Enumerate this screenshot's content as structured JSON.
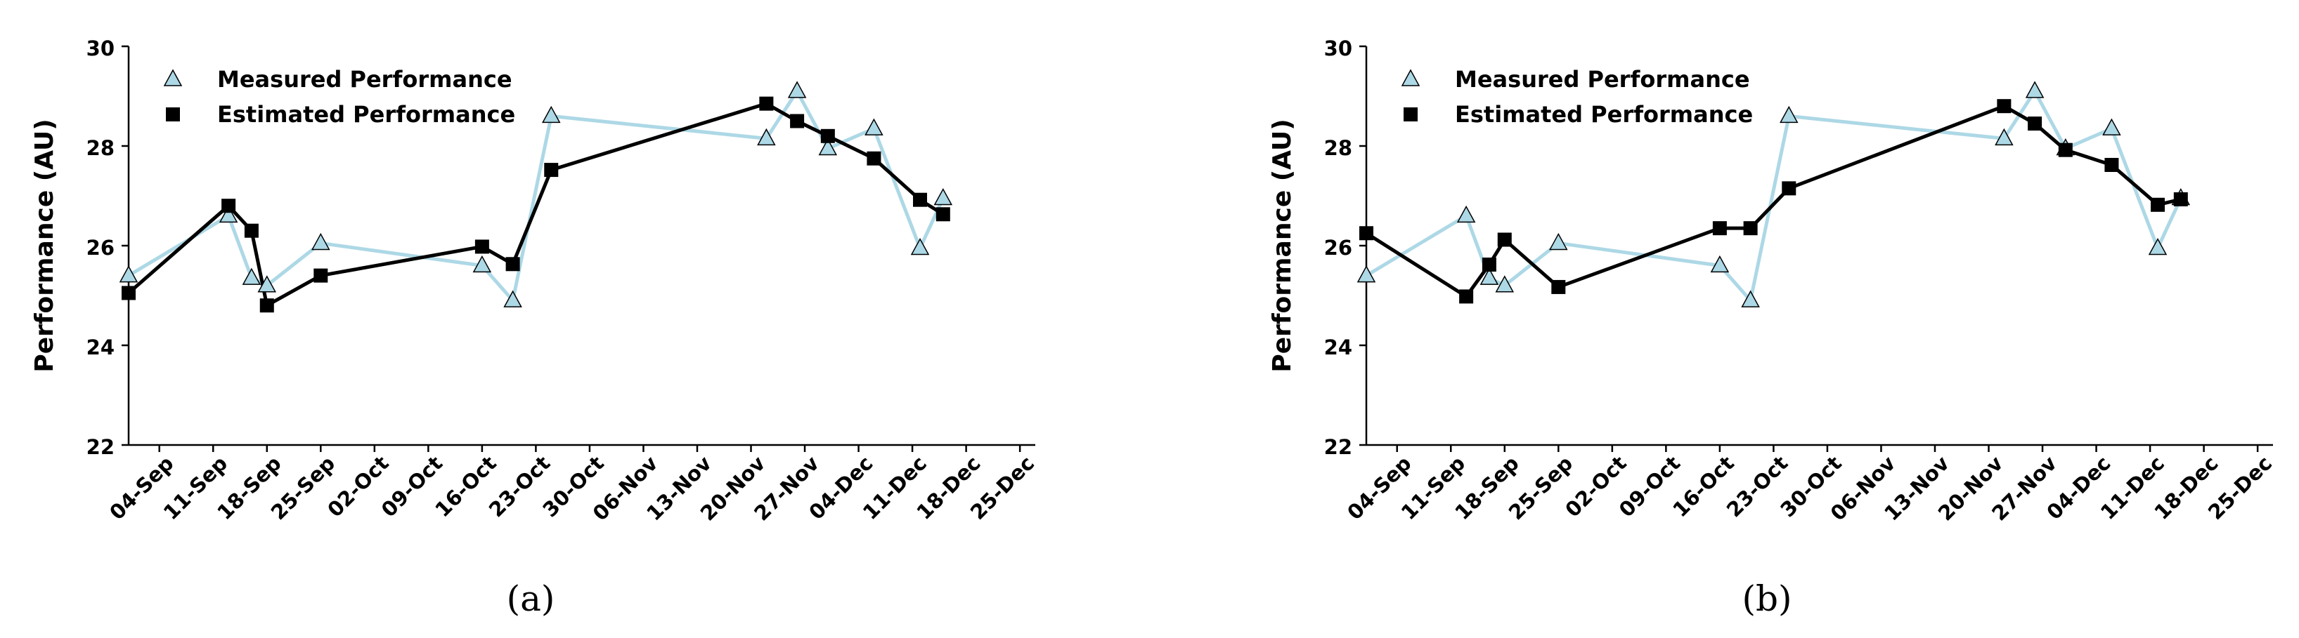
{
  "chart_data": [
    {
      "type": "line",
      "caption": "(a)",
      "title": "",
      "xlabel": "",
      "ylabel": "Performance (AU)",
      "ylim": [
        22,
        30
      ],
      "yticks": [
        22,
        24,
        26,
        28,
        30
      ],
      "xticks": [
        "04-Sep",
        "11-Sep",
        "18-Sep",
        "25-Sep",
        "02-Oct",
        "09-Oct",
        "16-Oct",
        "23-Oct",
        "30-Oct",
        "06-Nov",
        "13-Nov",
        "20-Nov",
        "27-Nov",
        "04-Dec",
        "11-Dec",
        "18-Dec",
        "25-Dec"
      ],
      "xrange_days": [
        "2023-08-31",
        "2023-12-27"
      ],
      "legend": {
        "position": "top-left"
      },
      "grid": false,
      "series": [
        {
          "name": "Measured Performance",
          "marker": "triangle",
          "color": "#add8e6",
          "points": [
            {
              "x": "31-Aug",
              "y": 25.4
            },
            {
              "x": "13-Sep",
              "y": 26.6
            },
            {
              "x": "16-Sep",
              "y": 25.35
            },
            {
              "x": "18-Sep",
              "y": 25.2
            },
            {
              "x": "25-Sep",
              "y": 26.05
            },
            {
              "x": "16-Oct",
              "y": 25.6
            },
            {
              "x": "20-Oct",
              "y": 24.9
            },
            {
              "x": "25-Oct",
              "y": 28.6
            },
            {
              "x": "22-Nov",
              "y": 28.15
            },
            {
              "x": "26-Nov",
              "y": 29.1
            },
            {
              "x": "30-Nov",
              "y": 27.95
            },
            {
              "x": "06-Dec",
              "y": 28.35
            },
            {
              "x": "12-Dec",
              "y": 25.95
            },
            {
              "x": "15-Dec",
              "y": 26.95
            }
          ]
        },
        {
          "name": "Estimated Performance",
          "marker": "square",
          "color": "#000000",
          "points": [
            {
              "x": "31-Aug",
              "y": 25.05
            },
            {
              "x": "13-Sep",
              "y": 26.8
            },
            {
              "x": "16-Sep",
              "y": 26.3
            },
            {
              "x": "18-Sep",
              "y": 24.8
            },
            {
              "x": "25-Sep",
              "y": 25.4
            },
            {
              "x": "16-Oct",
              "y": 25.98
            },
            {
              "x": "20-Oct",
              "y": 25.63
            },
            {
              "x": "25-Oct",
              "y": 27.52
            },
            {
              "x": "22-Nov",
              "y": 28.85
            },
            {
              "x": "26-Nov",
              "y": 28.5
            },
            {
              "x": "30-Nov",
              "y": 28.2
            },
            {
              "x": "06-Dec",
              "y": 27.75
            },
            {
              "x": "12-Dec",
              "y": 26.92
            },
            {
              "x": "15-Dec",
              "y": 26.63
            }
          ]
        }
      ]
    },
    {
      "type": "line",
      "caption": "(b)",
      "title": "",
      "xlabel": "",
      "ylabel": "Performance (AU)",
      "ylim": [
        22,
        30
      ],
      "yticks": [
        22,
        24,
        26,
        28,
        30
      ],
      "xticks": [
        "04-Sep",
        "11-Sep",
        "18-Sep",
        "25-Sep",
        "02-Oct",
        "09-Oct",
        "16-Oct",
        "23-Oct",
        "30-Oct",
        "06-Nov",
        "13-Nov",
        "20-Nov",
        "27-Nov",
        "04-Dec",
        "11-Dec",
        "18-Dec",
        "25-Dec"
      ],
      "xrange_days": [
        "2023-08-31",
        "2023-12-27"
      ],
      "legend": {
        "position": "top-left"
      },
      "grid": false,
      "series": [
        {
          "name": "Measured Performance",
          "marker": "triangle",
          "color": "#add8e6",
          "points": [
            {
              "x": "31-Aug",
              "y": 25.4
            },
            {
              "x": "13-Sep",
              "y": 26.6
            },
            {
              "x": "16-Sep",
              "y": 25.35
            },
            {
              "x": "18-Sep",
              "y": 25.2
            },
            {
              "x": "25-Sep",
              "y": 26.05
            },
            {
              "x": "16-Oct",
              "y": 25.6
            },
            {
              "x": "20-Oct",
              "y": 24.9
            },
            {
              "x": "25-Oct",
              "y": 28.6
            },
            {
              "x": "22-Nov",
              "y": 28.15
            },
            {
              "x": "26-Nov",
              "y": 29.1
            },
            {
              "x": "30-Nov",
              "y": 27.95
            },
            {
              "x": "06-Dec",
              "y": 28.35
            },
            {
              "x": "12-Dec",
              "y": 25.95
            },
            {
              "x": "15-Dec",
              "y": 26.95
            }
          ]
        },
        {
          "name": "Estimated Performance",
          "marker": "square",
          "color": "#000000",
          "points": [
            {
              "x": "31-Aug",
              "y": 26.25
            },
            {
              "x": "13-Sep",
              "y": 24.98
            },
            {
              "x": "16-Sep",
              "y": 25.62
            },
            {
              "x": "18-Sep",
              "y": 26.12
            },
            {
              "x": "25-Sep",
              "y": 25.17
            },
            {
              "x": "16-Oct",
              "y": 26.35
            },
            {
              "x": "20-Oct",
              "y": 26.35
            },
            {
              "x": "25-Oct",
              "y": 27.15
            },
            {
              "x": "22-Nov",
              "y": 28.8
            },
            {
              "x": "26-Nov",
              "y": 28.45
            },
            {
              "x": "30-Nov",
              "y": 27.92
            },
            {
              "x": "06-Dec",
              "y": 27.62
            },
            {
              "x": "12-Dec",
              "y": 26.82
            },
            {
              "x": "15-Dec",
              "y": 26.93
            }
          ]
        }
      ]
    }
  ]
}
